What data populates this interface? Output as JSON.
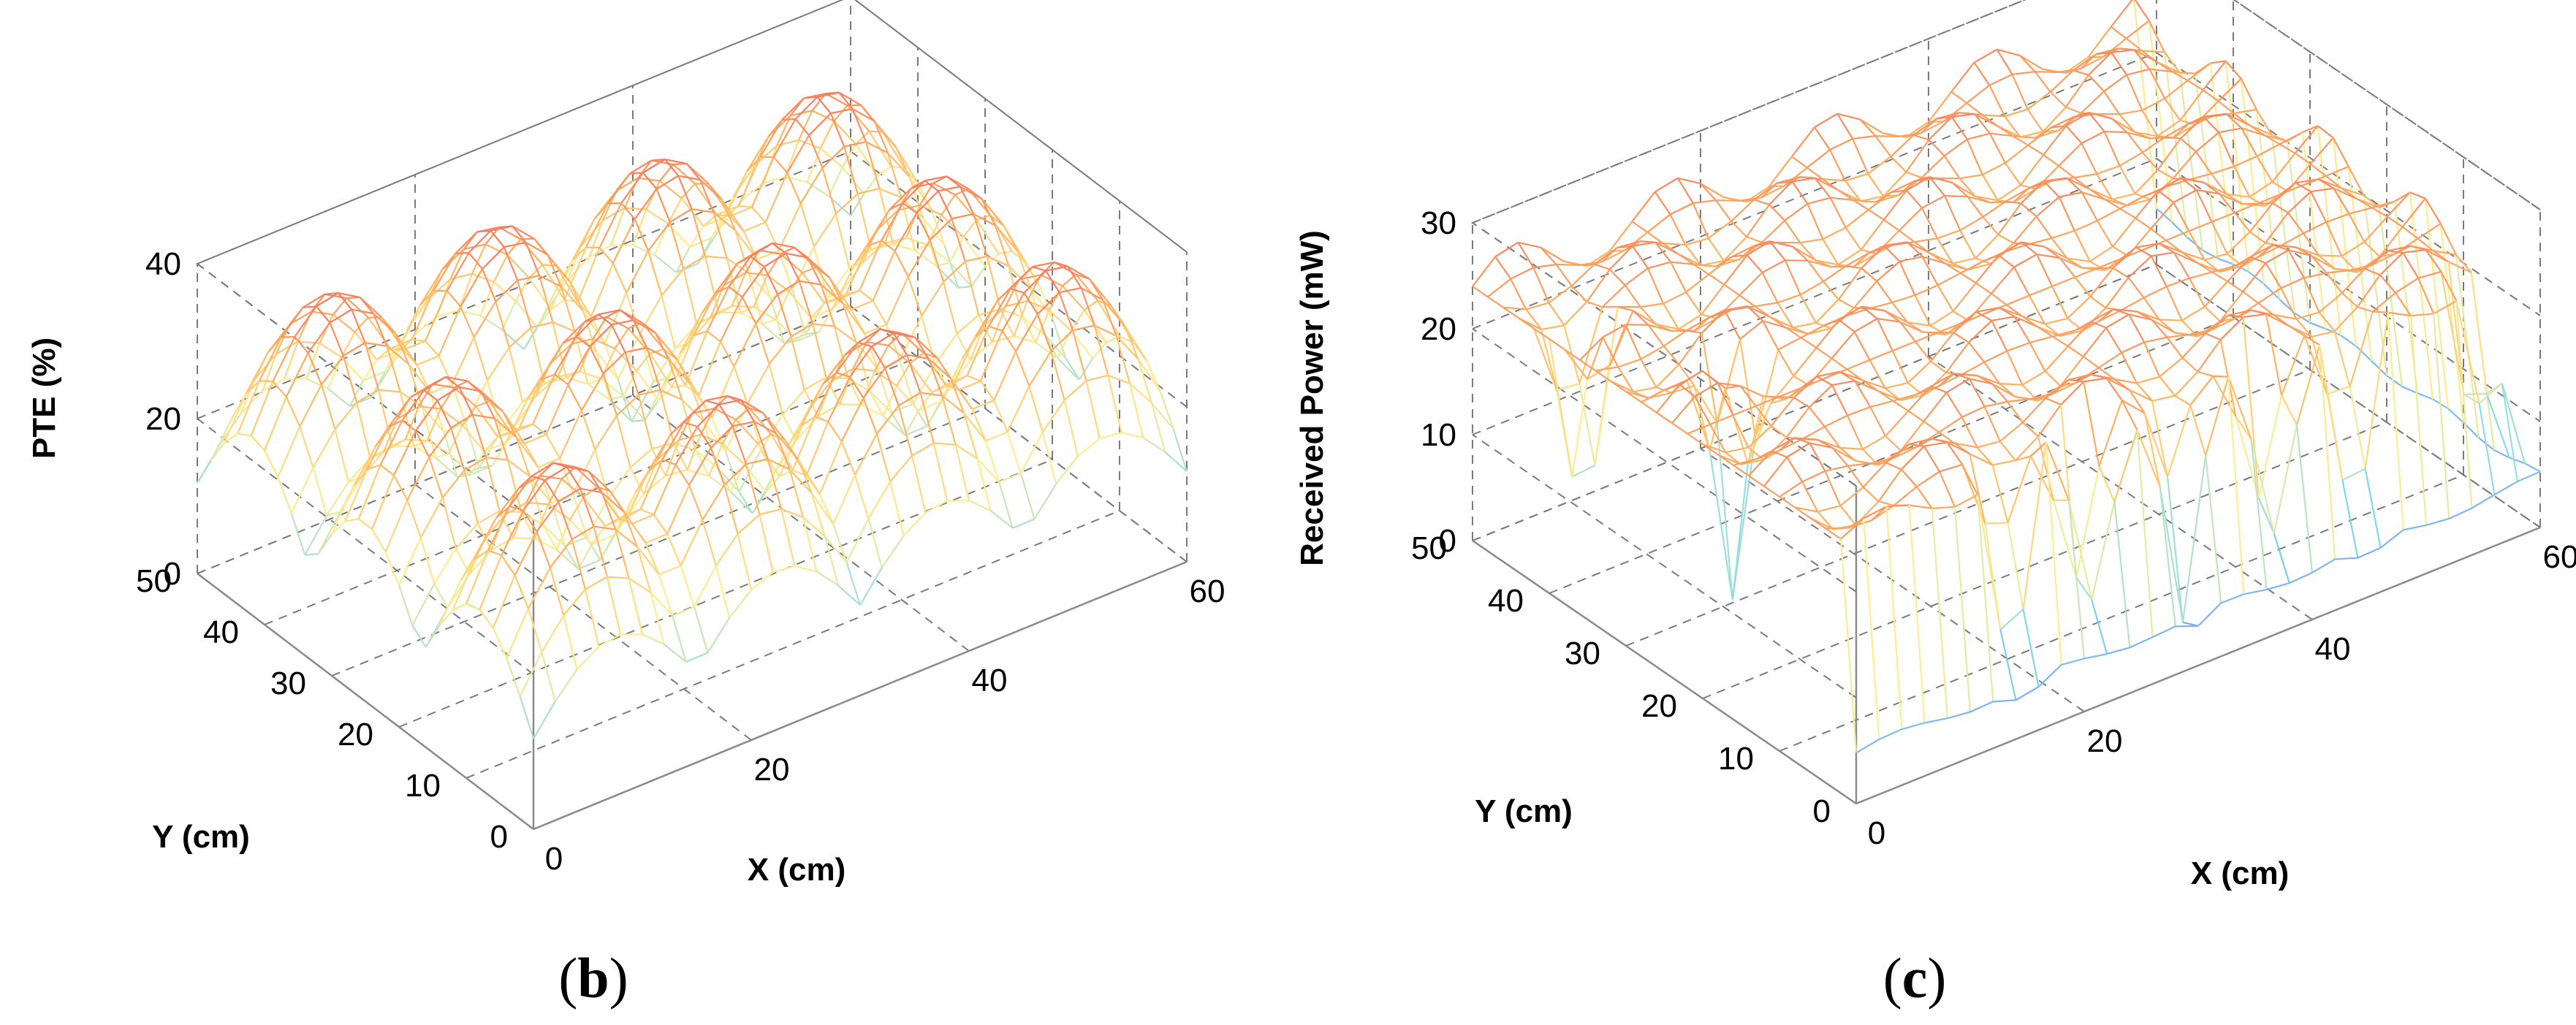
{
  "chart_data": [
    {
      "type": "surface",
      "panel_open": "(",
      "panel_letter": "b",
      "panel_close": ")",
      "title": "",
      "xlabel": "X (cm)",
      "ylabel": "Y (cm)",
      "zlabel": "PTE (%)",
      "xlim": [
        0,
        60
      ],
      "ylim": [
        0,
        50
      ],
      "zlim": [
        0,
        40
      ],
      "xticks": [
        0,
        20,
        40,
        60
      ],
      "yticks": [
        0,
        10,
        20,
        30,
        40,
        50
      ],
      "zticks": [
        0,
        20,
        40
      ],
      "description_of_data": "PTE surface with 4x3 grid of peaks over transmitter coils",
      "peak_value": 35,
      "min_value": 2,
      "colormap": "jet-pastel"
    },
    {
      "type": "surface",
      "panel_open": "(",
      "panel_letter": "c",
      "panel_close": ")",
      "title": "",
      "xlabel": "X (cm)",
      "ylabel": "Y (cm)",
      "zlabel": "Received Power (mW)",
      "xlim": [
        0,
        60
      ],
      "ylim": [
        0,
        50
      ],
      "zlim": [
        0,
        30
      ],
      "xticks": [
        0,
        20,
        40,
        60
      ],
      "yticks": [
        0,
        10,
        20,
        30,
        40,
        50
      ],
      "zticks": [
        0,
        10,
        20,
        30
      ],
      "description_of_data": "Received power surface mostly flat near 25 mW with deep dips",
      "plateau_value": 25,
      "min_value": 0,
      "colormap": "jet-pastel"
    }
  ],
  "colors": {
    "low": "#7f80f0",
    "midlow": "#7fd9f0",
    "mid": "#ffee90",
    "midhigh": "#ffb060",
    "high": "#f06060",
    "grid": "#7a7a7a",
    "axis": "#000000"
  }
}
